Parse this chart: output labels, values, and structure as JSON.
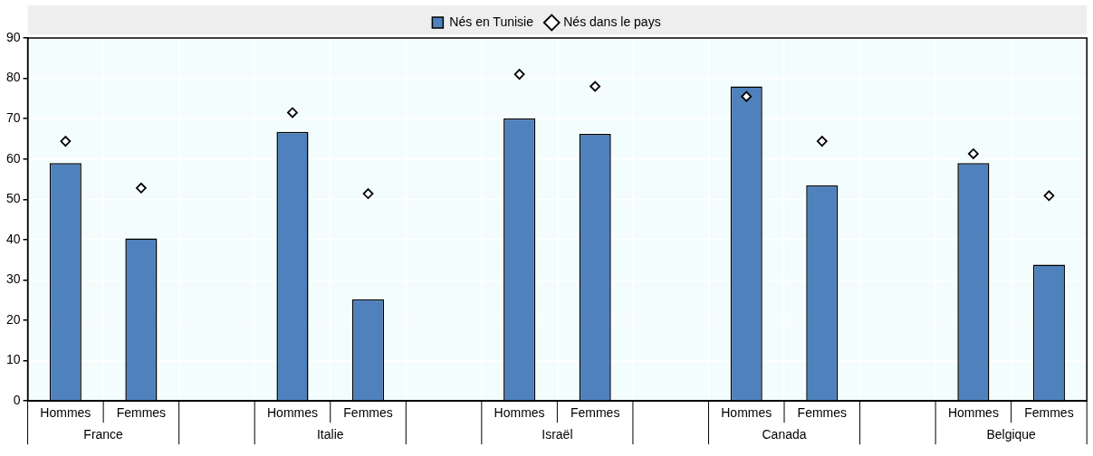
{
  "chart_data": {
    "type": "bar",
    "categories": [
      "Hommes",
      "Femmes",
      null,
      "Hommes",
      "Femmes",
      null,
      "Hommes",
      "Femmes",
      null,
      "Hommes",
      "Femmes",
      null,
      "Hommes",
      "Femmes"
    ],
    "series": [
      {
        "name": "Nés en Tunisie",
        "color": "#4f81bd",
        "values": [
          59,
          40.3,
          null,
          66.7,
          25.2,
          null,
          70.1,
          66.2,
          null,
          78,
          53.5,
          null,
          59,
          33.8
        ]
      },
      {
        "name": "Nés dans le pays",
        "type": "scatter",
        "color": "#000000",
        "values": [
          64.4,
          52.8,
          null,
          71.5,
          51.4,
          null,
          81,
          78,
          null,
          75.5,
          64.4,
          null,
          61.3,
          50.9
        ]
      }
    ],
    "annotations": [
      "France",
      "Italie",
      "Israël",
      "Canada",
      "Belgique"
    ],
    "ylim": [
      0,
      90
    ],
    "yticks": [
      0,
      10,
      20,
      30,
      40,
      50,
      60,
      70,
      80,
      90
    ],
    "grid": true,
    "legend": "top",
    "marker": "diamond"
  }
}
